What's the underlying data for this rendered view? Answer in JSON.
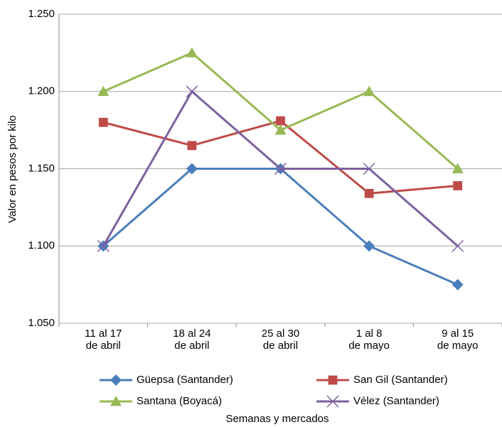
{
  "chart_data": {
    "type": "line",
    "y_label": "Valor en pesos por kilo",
    "x_label": "Semanas y mercados",
    "categories": [
      "11 al 17\nde abril",
      "18 al 24\nde abril",
      "25 al 30\nde abril",
      "1 al 8\nde mayo",
      "9 al 15\nde mayo"
    ],
    "series": [
      {
        "name": "Güepsa (Santander)",
        "color": "#4a7ebb",
        "marker": "diamond",
        "values": [
          1100,
          1150,
          1150,
          1100,
          1075
        ]
      },
      {
        "name": "San Gil (Santander)",
        "color": "#be4b48",
        "marker": "square",
        "values": [
          1180,
          1165,
          1181,
          1134,
          1139
        ]
      },
      {
        "name": "Santana (Boyacá)",
        "color": "#98b954",
        "marker": "triangle",
        "values": [
          1200,
          1225,
          1175,
          1200,
          1150
        ]
      },
      {
        "name": "Vélez (Santander)",
        "color": "#7d60a0",
        "marker": "x",
        "values": [
          1100,
          1200,
          1150,
          1150,
          1100
        ]
      }
    ],
    "ylim": [
      1050,
      1250
    ],
    "yticks": [
      {
        "value": 1050,
        "label": "1.050"
      },
      {
        "value": 1100,
        "label": "1.100"
      },
      {
        "value": 1150,
        "label": "1.150"
      },
      {
        "value": 1200,
        "label": "1.200"
      },
      {
        "value": 1250,
        "label": "1.250"
      }
    ],
    "grid": true,
    "legend": "bottom"
  }
}
